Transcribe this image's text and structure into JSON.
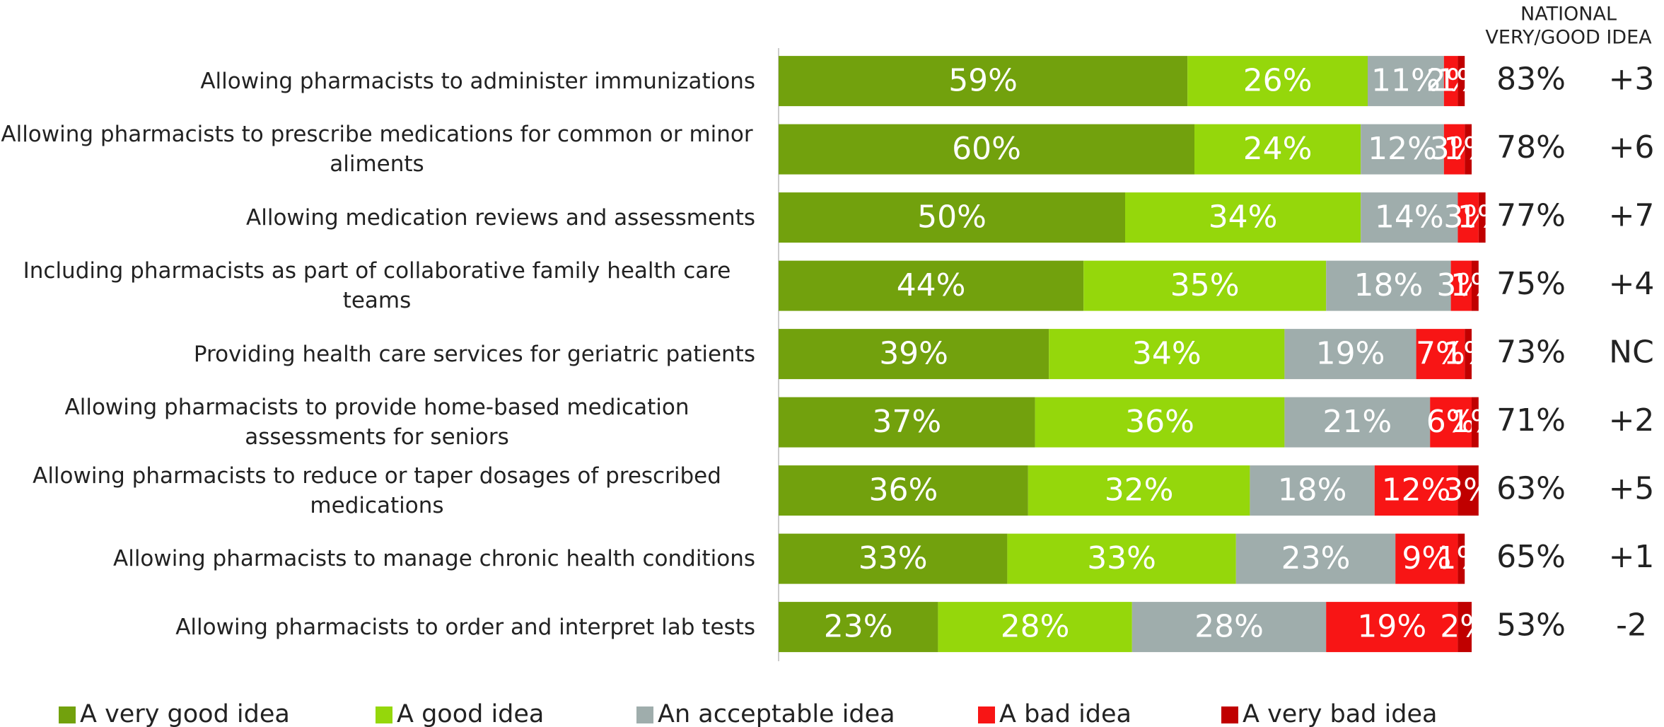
{
  "chart_data": {
    "type": "stacked-barh",
    "categories": [
      "Allowing pharmacists to administer immunizations",
      "Allowing pharmacists to prescribe medications for common or minor aliments",
      "Allowing medication reviews and assessments",
      "Including pharmacists as part of collaborative family health care teams",
      "Providing health care services for geriatric patients",
      "Allowing pharmacists to provide home-based medication assessments for seniors",
      "Allowing pharmacists to reduce or taper dosages of prescribed medications",
      "Allowing pharmacists to manage chronic health conditions",
      "Allowing pharmacists to order and interpret lab tests"
    ],
    "series": [
      {
        "name": "A very good idea",
        "color": "#72a10d",
        "values": [
          59,
          60,
          50,
          44,
          39,
          37,
          36,
          33,
          23
        ],
        "value_labels": [
          "59%",
          "60%",
          "50%",
          "44%",
          "39%",
          "37%",
          "36%",
          "33%",
          "23%"
        ]
      },
      {
        "name": "A good idea",
        "color": "#95d70b",
        "values": [
          26,
          24,
          34,
          35,
          34,
          36,
          32,
          33,
          28
        ],
        "value_labels": [
          "26%",
          "24%",
          "34%",
          "35%",
          "34%",
          "36%",
          "32%",
          "33%",
          "28%"
        ]
      },
      {
        "name": "An acceptable idea",
        "color": "#9fadac",
        "values": [
          11,
          12,
          14,
          18,
          19,
          21,
          18,
          23,
          28
        ],
        "value_labels": [
          "11%",
          "12%",
          "14%",
          "18%",
          "19%",
          "21%",
          "18%",
          "23%",
          "28%"
        ]
      },
      {
        "name": "A bad idea",
        "color": "#f81515",
        "values": [
          2,
          3,
          3,
          3,
          7,
          6,
          12,
          9,
          19
        ],
        "value_labels": [
          "2%",
          "3%",
          "3%",
          "3%",
          "7%",
          "6%",
          "12%",
          "9%",
          "19%"
        ]
      },
      {
        "name": "A very bad idea",
        "color": "#c00000",
        "values": [
          1,
          1,
          1,
          1,
          1,
          1,
          3,
          1,
          2
        ],
        "value_labels": [
          "1%",
          "1%",
          "1%",
          "1%",
          "1%",
          "1%",
          "3%",
          "1%",
          "2%"
        ]
      }
    ],
    "xlim": [
      0,
      100
    ],
    "national_header": [
      "NATIONAL",
      "VERY/GOOD IDEA"
    ],
    "national": [
      "83%",
      "78%",
      "77%",
      "75%",
      "73%",
      "71%",
      "63%",
      "65%",
      "53%"
    ],
    "change": [
      "+3",
      "+6",
      "+7",
      "+4",
      "NC",
      "+2",
      "+5",
      "+1",
      "-2"
    ]
  }
}
